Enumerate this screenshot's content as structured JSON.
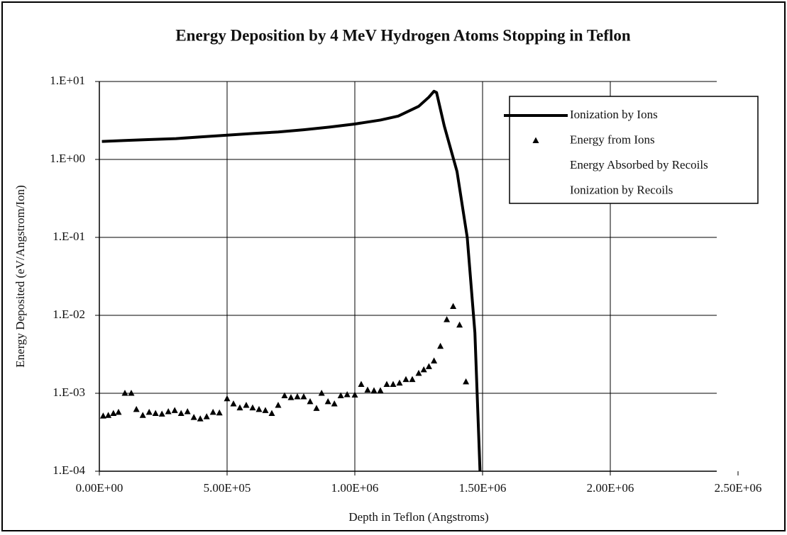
{
  "chart_data": {
    "type": "scatter",
    "title": "Energy Deposition by 4 MeV Hydrogen Atoms Stopping in Teflon",
    "x_label": "Depth in Teflon (Angstroms)",
    "y_label": "Energy Deposited (eV/Angstrom/Ion)",
    "y_log": true,
    "grid": true,
    "legend": "upper right",
    "xlim": [
      0,
      2500000
    ],
    "xticks": [
      {
        "value": 0,
        "label": "0.00E+00"
      },
      {
        "value": 500000,
        "label": "5.00E+05"
      },
      {
        "value": 1000000,
        "label": "1.00E+06"
      },
      {
        "value": 1500000,
        "label": "1.50E+06"
      },
      {
        "value": 2000000,
        "label": "2.00E+06"
      },
      {
        "value": 2500000,
        "label": "2.50E+06"
      }
    ],
    "ylim": [
      0.0001,
      10
    ],
    "yticks": [
      {
        "value": 10,
        "label": "1.E+01"
      },
      {
        "value": 1,
        "label": "1.E+00"
      },
      {
        "value": 0.1,
        "label": "1.E-01"
      },
      {
        "value": 0.01,
        "label": "1.E-02"
      },
      {
        "value": 0.001,
        "label": "1.E-03"
      },
      {
        "value": 0.0001,
        "label": "1.E-04"
      }
    ],
    "series": [
      {
        "name": "Ionization by Ions",
        "color": "#000000",
        "mode": "line",
        "x": [
          10000,
          100000,
          200000,
          300000,
          400000,
          500000,
          600000,
          700000,
          800000,
          900000,
          1000000,
          1100000,
          1170000,
          1250000,
          1290000,
          1310000,
          1320000,
          1350000,
          1400000,
          1440000,
          1470000,
          1490000
        ],
        "values": [
          1.7,
          1.75,
          1.8,
          1.85,
          1.95,
          2.05,
          2.15,
          2.25,
          2.4,
          2.6,
          2.85,
          3.2,
          3.6,
          4.8,
          6.3,
          7.5,
          7.2,
          2.7,
          0.7,
          0.1,
          0.006,
          0.0001
        ]
      },
      {
        "name": "Energy from Ions",
        "color": "#000000",
        "mode": "marker",
        "x": [
          15000,
          35000,
          55000,
          75000,
          100000,
          125000,
          145000,
          170000,
          195000,
          220000,
          245000,
          270000,
          295000,
          320000,
          345000,
          370000,
          395000,
          420000,
          445000,
          470000,
          500000,
          525000,
          550000,
          575000,
          600000,
          625000,
          650000,
          675000,
          700000,
          725000,
          750000,
          775000,
          800000,
          825000,
          850000,
          870000,
          895000,
          920000,
          945000,
          970000,
          1000000,
          1025000,
          1050000,
          1075000,
          1100000,
          1125000,
          1150000,
          1175000,
          1200000,
          1225000,
          1250000,
          1270000,
          1290000,
          1310000,
          1335000,
          1360000,
          1385000,
          1410000,
          1435000
        ],
        "values": [
          0.00051,
          0.00052,
          0.00055,
          0.00057,
          0.001,
          0.001,
          0.00062,
          0.00052,
          0.00057,
          0.00055,
          0.00054,
          0.00058,
          0.0006,
          0.00055,
          0.00058,
          0.00049,
          0.00047,
          0.0005,
          0.00057,
          0.00056,
          0.00085,
          0.00073,
          0.00065,
          0.0007,
          0.00065,
          0.00062,
          0.0006,
          0.00055,
          0.0007,
          0.00093,
          0.00088,
          0.0009,
          0.0009,
          0.00078,
          0.00064,
          0.001,
          0.00078,
          0.00073,
          0.00093,
          0.00096,
          0.00095,
          0.0013,
          0.0011,
          0.00108,
          0.00108,
          0.0013,
          0.0013,
          0.00135,
          0.0015,
          0.0015,
          0.0018,
          0.002,
          0.0022,
          0.0026,
          0.004,
          0.0088,
          0.013,
          0.0075,
          0.0014
        ]
      },
      {
        "name": "Energy Absorbed by Recoils",
        "x": [],
        "values": []
      },
      {
        "name": "Ionization by Recoils",
        "x": [],
        "values": []
      }
    ]
  }
}
